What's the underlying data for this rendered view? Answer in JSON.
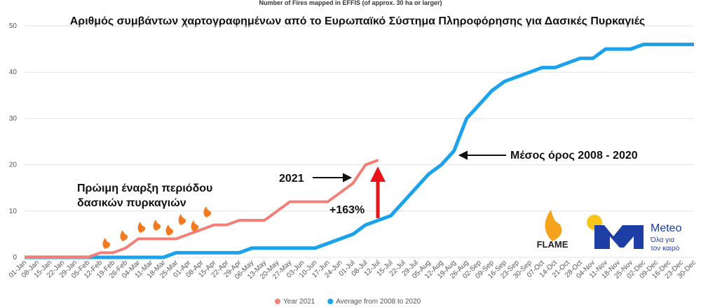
{
  "chart_data": {
    "type": "line",
    "title": "Number of Fires mapped in EFFIS (of approx. 30 ha or larger)",
    "subtitle": "Αριθμός συμβάντων χαρτογραφημένων από το Ευρωπαϊκό Σύστημα Πληροφόρησης για Δασικές Πυρκαγιές",
    "categories": [
      "01-Jan",
      "08-Jan",
      "15-Jan",
      "22-Jan",
      "29-Jan",
      "05-Feb",
      "12-Feb",
      "19-Feb",
      "26-Feb",
      "04-Mar",
      "11-Mar",
      "18-Mar",
      "25-Mar",
      "01-Apr",
      "08-Apr",
      "15-Apr",
      "22-Apr",
      "29-Apr",
      "06-May",
      "13-May",
      "20-May",
      "27-May",
      "03-Jun",
      "10-Jun",
      "17-Jun",
      "24-Jun",
      "01-Jul",
      "08-Jul",
      "12-Jul",
      "15-Jul",
      "22-Jul",
      "29-Jul",
      "05-Aug",
      "12-Aug",
      "19-Aug",
      "26-Aug",
      "02-Sep",
      "09-Sep",
      "16-Sep",
      "23-Sep",
      "30-Sep",
      "07-Oct",
      "14-Oct",
      "21-Oct",
      "28-Oct",
      "04-Nov",
      "11-Nov",
      "18-Nov",
      "25-Nov",
      "02-Dec",
      "09-Dec",
      "16-Dec",
      "23-Dec",
      "30-Dec"
    ],
    "series": [
      {
        "name": "Year 2021",
        "color": "#f28079",
        "values": [
          0,
          0,
          0,
          0,
          0,
          0,
          1,
          1,
          2,
          4,
          4,
          4,
          4,
          5,
          6,
          7,
          7,
          8,
          8,
          8,
          10,
          12,
          12,
          12,
          12,
          14,
          16,
          20,
          21,
          null,
          null,
          null,
          null,
          null,
          null,
          null,
          null,
          null,
          null,
          null,
          null,
          null,
          null,
          null,
          null,
          null,
          null,
          null,
          null,
          null,
          null,
          null,
          null,
          null
        ]
      },
      {
        "name": "Average from 2008 to 2020",
        "color": "#1aa3ec",
        "values": [
          0,
          0,
          0,
          0,
          0,
          0,
          0,
          0,
          0,
          0,
          0,
          0,
          1,
          1,
          1,
          1,
          1,
          1,
          2,
          2,
          2,
          2,
          2,
          2,
          3,
          4,
          5,
          7,
          8,
          9,
          12,
          15,
          18,
          20,
          23,
          30,
          33,
          36,
          38,
          39,
          40,
          41,
          41,
          42,
          43,
          43,
          45,
          45,
          45,
          46,
          46,
          46,
          46,
          46
        ]
      }
    ],
    "ylim": [
      0,
      50
    ],
    "yticks": [
      0,
      10,
      20,
      30,
      40,
      50
    ],
    "grid": true,
    "legend": "bottom",
    "annotations": {
      "early": [
        "Πρώιμη έναρξη περιόδου",
        "δασικών πυρκαγιών"
      ],
      "year": "2021",
      "increase": "+163%",
      "average": "Μέσος όρος 2008 - 2020"
    },
    "logos": {
      "flame": "FLAME",
      "meteo": "Meteo",
      "meteo_tagline": [
        "Όλα για",
        "τον καιρό"
      ]
    }
  }
}
